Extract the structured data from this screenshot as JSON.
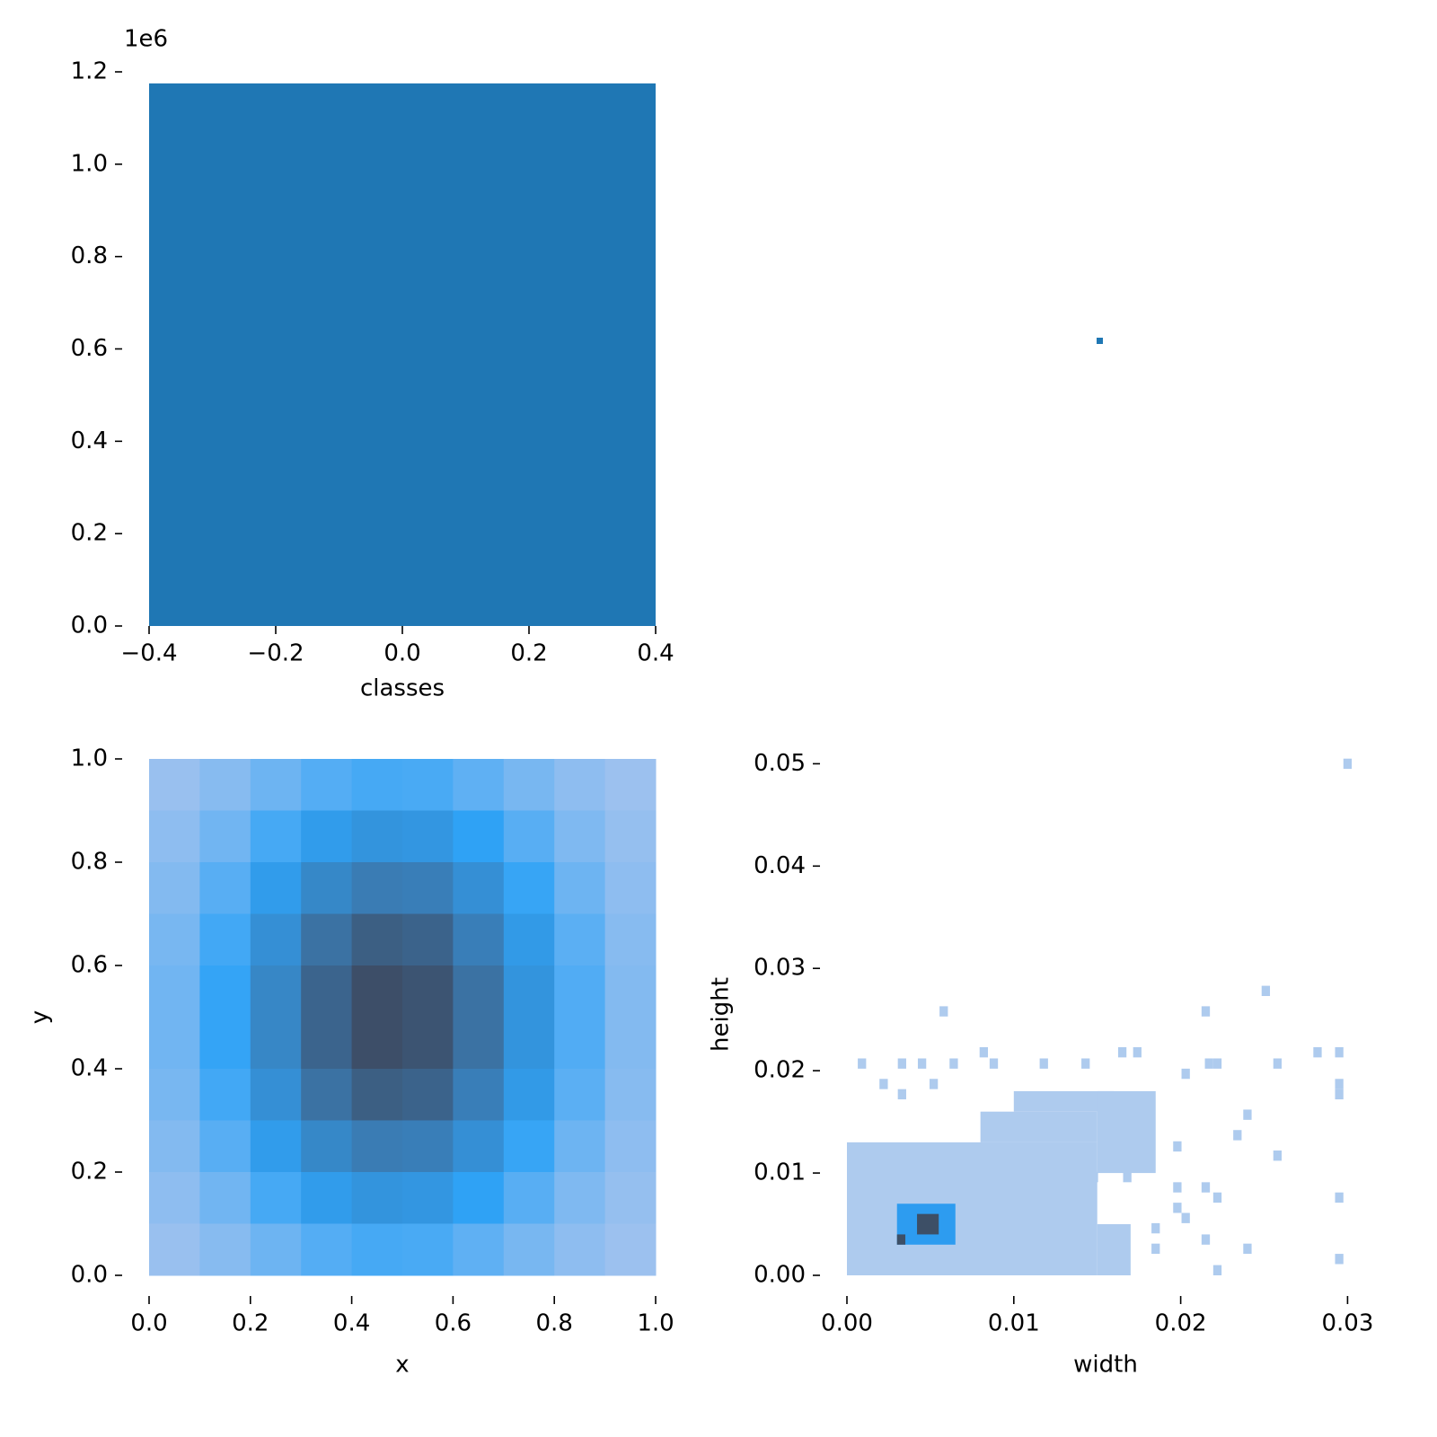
{
  "chart_data": [
    {
      "type": "bar",
      "x": [
        0
      ],
      "values": [
        1175000
      ],
      "bar_width": 0.8,
      "color": "#1f77b4",
      "xlabel": "classes",
      "offset_text": "1e6",
      "xlim": [
        -0.4,
        0.4
      ],
      "xticks": [
        {
          "value": -0.4,
          "label": "−0.4"
        },
        {
          "value": -0.2,
          "label": "−0.2"
        },
        {
          "value": 0,
          "label": "0.0"
        },
        0.2,
        0.4
      ],
      "ylim": [
        0,
        1200000
      ],
      "yticks": [
        {
          "value": 0,
          "label": "0.0"
        },
        {
          "value": 200000,
          "label": "0.2"
        },
        {
          "value": 400000,
          "label": "0.4"
        },
        {
          "value": 600000,
          "label": "0.6"
        },
        {
          "value": 800000,
          "label": "0.8"
        },
        {
          "value": 1000000,
          "label": "1.0"
        },
        {
          "value": 1200000,
          "label": "1.2"
        }
      ]
    },
    {
      "type": "heatmap",
      "xlabel": "x",
      "ylabel": "y",
      "cmap": [
        "#a7c4ee",
        "#2fa3f6",
        "#3a7bb3",
        "#3d4a61"
      ],
      "xlim": [
        0,
        1
      ],
      "ylim": [
        0,
        1
      ],
      "xticks": [
        {
          "value": 0,
          "label": "0.0"
        },
        0.2,
        0.4,
        0.6,
        0.8,
        {
          "value": 1,
          "label": "1.0"
        }
      ],
      "yticks": [
        {
          "value": 0,
          "label": "0.0"
        },
        0.2,
        0.4,
        0.6,
        0.8,
        {
          "value": 1,
          "label": "1.0"
        }
      ],
      "z": [
        [
          0.04,
          0.09,
          0.16,
          0.23,
          0.27,
          0.26,
          0.2,
          0.13,
          0.07,
          0.03
        ],
        [
          0.07,
          0.15,
          0.27,
          0.39,
          0.46,
          0.44,
          0.34,
          0.22,
          0.11,
          0.05
        ],
        [
          0.1,
          0.22,
          0.39,
          0.56,
          0.66,
          0.64,
          0.5,
          0.31,
          0.16,
          0.07
        ],
        [
          0.13,
          0.28,
          0.5,
          0.73,
          0.86,
          0.83,
          0.64,
          0.41,
          0.21,
          0.09
        ],
        [
          0.15,
          0.32,
          0.57,
          0.82,
          0.97,
          0.93,
          0.73,
          0.46,
          0.24,
          0.1
        ],
        [
          0.15,
          0.32,
          0.57,
          0.82,
          0.97,
          0.93,
          0.73,
          0.46,
          0.24,
          0.1
        ],
        [
          0.13,
          0.28,
          0.5,
          0.73,
          0.86,
          0.83,
          0.64,
          0.41,
          0.21,
          0.09
        ],
        [
          0.1,
          0.22,
          0.39,
          0.56,
          0.66,
          0.64,
          0.5,
          0.31,
          0.16,
          0.07
        ],
        [
          0.07,
          0.15,
          0.27,
          0.39,
          0.46,
          0.44,
          0.34,
          0.22,
          0.11,
          0.05
        ],
        [
          0.04,
          0.09,
          0.16,
          0.23,
          0.27,
          0.26,
          0.2,
          0.13,
          0.07,
          0.03
        ]
      ]
    },
    {
      "type": "hist2d",
      "xlabel": "width",
      "ylabel": "height",
      "cmap": [
        "#aecbee",
        "#2d9cf0",
        "#3d4f66"
      ],
      "xlim": [
        0,
        0.031
      ],
      "ylim": [
        0,
        0.051
      ],
      "xticks": [
        {
          "value": 0,
          "label": "0.00"
        },
        0.01,
        0.02,
        0.03
      ],
      "yticks": [
        {
          "value": 0,
          "label": "0.00"
        },
        0.01,
        0.02,
        0.03,
        0.04,
        0.05
      ],
      "binw": 0.0005,
      "binh": 0.001,
      "regions": [
        [
          0,
          0.015,
          0,
          0.013,
          0
        ],
        [
          0.008,
          0.015,
          0.013,
          0.016,
          0
        ],
        [
          0.01,
          0.016,
          0.016,
          0.018,
          0
        ],
        [
          0.015,
          0.0185,
          0.01,
          0.018,
          0
        ],
        [
          0.015,
          0.017,
          0,
          0.005,
          0
        ],
        [
          0.003,
          0.0065,
          0.003,
          0.007,
          1
        ],
        [
          0.003,
          0.0035,
          0.003,
          0.004,
          2
        ],
        [
          0.0042,
          0.0055,
          0.004,
          0.006,
          2
        ]
      ],
      "cells": [
        [
          0.03,
          0.05
        ],
        [
          0.0251,
          0.0278
        ],
        [
          0.0058,
          0.0258
        ],
        [
          0.0215,
          0.0258
        ],
        [
          0.0082,
          0.0218
        ],
        [
          0.0165,
          0.0218
        ],
        [
          0.0174,
          0.0218
        ],
        [
          0.0282,
          0.0218
        ],
        [
          0.0295,
          0.0218
        ],
        [
          0.0009,
          0.0207
        ],
        [
          0.0033,
          0.0207
        ],
        [
          0.0045,
          0.0207
        ],
        [
          0.0064,
          0.0207
        ],
        [
          0.0088,
          0.0207
        ],
        [
          0.0118,
          0.0207
        ],
        [
          0.0143,
          0.0207
        ],
        [
          0.0217,
          0.0207
        ],
        [
          0.0222,
          0.0207
        ],
        [
          0.0258,
          0.0207
        ],
        [
          0.0203,
          0.0197
        ],
        [
          0.0295,
          0.0187
        ],
        [
          0.0295,
          0.0177
        ],
        [
          0.0022,
          0.0187
        ],
        [
          0.0052,
          0.0187
        ],
        [
          0.0033,
          0.0177
        ],
        [
          0.024,
          0.0157
        ],
        [
          0.0234,
          0.0137
        ],
        [
          0.0258,
          0.0117
        ],
        [
          0.0198,
          0.0126
        ],
        [
          0.0148,
          0.0096
        ],
        [
          0.0168,
          0.0096
        ],
        [
          0.0198,
          0.0086
        ],
        [
          0.0215,
          0.0086
        ],
        [
          0.0222,
          0.0076
        ],
        [
          0.0295,
          0.0076
        ],
        [
          0.0198,
          0.0066
        ],
        [
          0.0203,
          0.0056
        ],
        [
          0.0185,
          0.0046
        ],
        [
          0.0215,
          0.0035
        ],
        [
          0.0185,
          0.0026
        ],
        [
          0.024,
          0.0026
        ],
        [
          0.0295,
          0.0016
        ],
        [
          0.0222,
          0.0005
        ],
        [
          0.016,
          0.0005
        ],
        [
          0.0136,
          0.0026
        ]
      ]
    }
  ]
}
